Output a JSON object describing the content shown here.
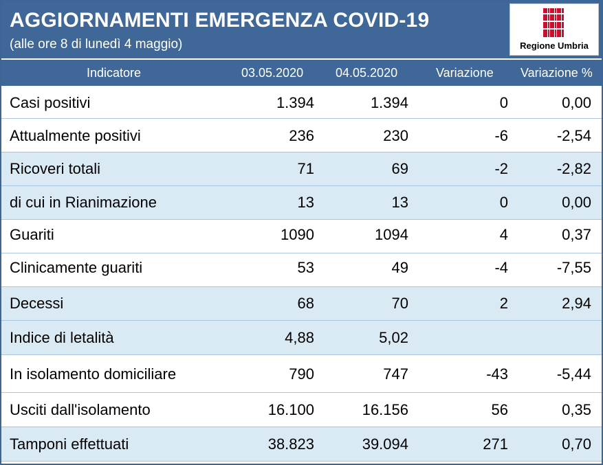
{
  "header": {
    "title": "AGGIORNAMENTI EMERGENZA COVID-19",
    "subtitle": "(alle ore 8 di lunedì 4 maggio)",
    "logo_text": "Regione Umbria"
  },
  "colors": {
    "banner": "#3f6797",
    "shaded_row": "#daeaf4",
    "logo_red": "#c8102e"
  },
  "table": {
    "columns": [
      "Indicatore",
      "03.05.2020",
      "04.05.2020",
      "Variazione",
      "Variazione %"
    ],
    "rows": [
      {
        "name": "Casi positivi",
        "d1": "1.394",
        "d2": "1.394",
        "var": "0",
        "pct": "0,00"
      },
      {
        "name": "Attualmente positivi",
        "d1": "236",
        "d2": "230",
        "var": "-6",
        "pct": "-2,54"
      },
      {
        "name": "Ricoveri totali",
        "d1": "71",
        "d2": "69",
        "var": "-2",
        "pct": "-2,82"
      },
      {
        "name": "di cui in Rianimazione",
        "d1": "13",
        "d2": "13",
        "var": "0",
        "pct": "0,00"
      },
      {
        "name": "Guariti",
        "d1": "1090",
        "d2": "1094",
        "var": "4",
        "pct": "0,37"
      },
      {
        "name": "Clinicamente guariti",
        "d1": "53",
        "d2": "49",
        "var": "-4",
        "pct": "-7,55"
      },
      {
        "name": "Decessi",
        "d1": "68",
        "d2": "70",
        "var": "2",
        "pct": "2,94"
      },
      {
        "name": "Indice di letalità",
        "d1": "4,88",
        "d2": "5,02",
        "var": "",
        "pct": ""
      },
      {
        "name": "In isolamento domiciliare",
        "d1": "790",
        "d2": "747",
        "var": "-43",
        "pct": "-5,44"
      },
      {
        "name": "Usciti dall'isolamento",
        "d1": "16.100",
        "d2": "16.156",
        "var": "56",
        "pct": "0,35"
      },
      {
        "name": "Tamponi effettuati",
        "d1": "38.823",
        "d2": "39.094",
        "var": "271",
        "pct": "0,70"
      }
    ]
  }
}
